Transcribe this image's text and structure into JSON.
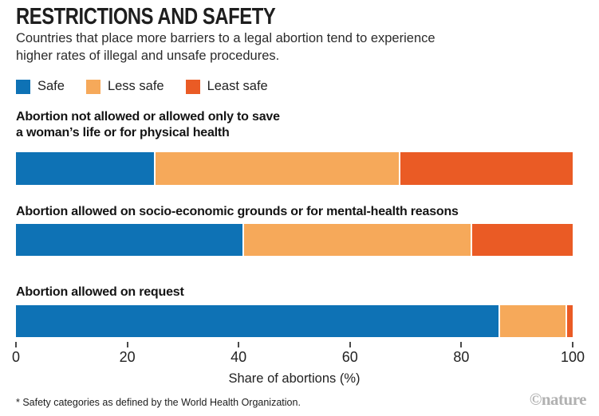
{
  "header": {
    "title": "RESTRICTIONS AND SAFETY",
    "subtitle_line1": "Countries that place more barriers to a legal abortion tend to experience",
    "subtitle_line2": "higher rates of illegal and unsafe procedures."
  },
  "chart_data": {
    "type": "bar",
    "orientation": "horizontal-stacked",
    "unit": "%",
    "categories": [
      "Abortion not allowed or allowed only to save a woman’s life or for physical health",
      "Abortion allowed on socio-economic grounds or for mental-health reasons",
      "Abortion allowed on request"
    ],
    "category_label_lines": [
      [
        "Abortion not allowed or allowed only to save",
        "a woman’s life or for physical health"
      ],
      [
        "Abortion allowed on socio-economic grounds or for mental-health reasons"
      ],
      [
        "Abortion allowed on request"
      ]
    ],
    "series": [
      {
        "name": "Safe",
        "color": "#0e72b5",
        "values": [
          25,
          41,
          87
        ]
      },
      {
        "name": "Less safe",
        "color": "#f6a95a",
        "values": [
          44,
          41,
          12
        ]
      },
      {
        "name": "Least safe",
        "color": "#ea5b25",
        "values": [
          31,
          18,
          1
        ]
      }
    ],
    "x_ticks": [
      0,
      20,
      40,
      60,
      80,
      100
    ],
    "xlim": [
      0,
      100
    ],
    "xlabel": "Share of abortions (%)",
    "legend_position": "top",
    "grid": false
  },
  "footer": {
    "footnote": "* Safety categories as defined by the World Health Organization.",
    "credit": "©nature"
  },
  "colors": {
    "safe": "#0e72b5",
    "less_safe": "#f6a95a",
    "least_safe": "#ea5b25",
    "text": "#222222",
    "credit_gray": "#b1b1b1"
  }
}
